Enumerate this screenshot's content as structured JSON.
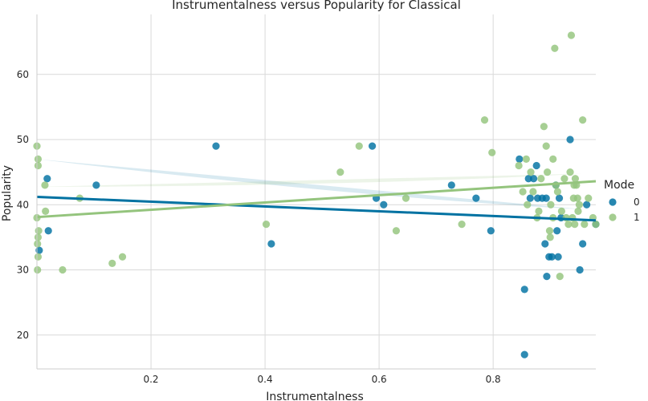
{
  "chart_data": {
    "type": "scatter",
    "title": "Instrumentalness versus Popularity for Classical",
    "xlabel": "Instrumentalness",
    "ylabel": "Popularity",
    "xlim": [
      0.0,
      0.98
    ],
    "ylim": [
      14.8,
      69.2
    ],
    "x_ticks": [
      0.2,
      0.4,
      0.6,
      0.8
    ],
    "x_tick_labels": [
      "0.2",
      "0.4",
      "0.6",
      "0.8"
    ],
    "y_ticks": [
      20,
      30,
      40,
      50,
      60
    ],
    "y_tick_labels": [
      "20",
      "30",
      "40",
      "50",
      "60"
    ],
    "grid": true,
    "legend": {
      "title": "Mode",
      "placement": "right"
    },
    "series": [
      {
        "name": "0",
        "color": "#0072a2",
        "points": [
          [
            0.004,
            33
          ],
          [
            0.018,
            44
          ],
          [
            0.02,
            36
          ],
          [
            0.104,
            43
          ],
          [
            0.314,
            49
          ],
          [
            0.411,
            34
          ],
          [
            0.588,
            49
          ],
          [
            0.595,
            41
          ],
          [
            0.608,
            40
          ],
          [
            0.727,
            43
          ],
          [
            0.77,
            41
          ],
          [
            0.796,
            36
          ],
          [
            0.846,
            47
          ],
          [
            0.855,
            27
          ],
          [
            0.855,
            17
          ],
          [
            0.862,
            44
          ],
          [
            0.865,
            41
          ],
          [
            0.871,
            44
          ],
          [
            0.876,
            46
          ],
          [
            0.878,
            41
          ],
          [
            0.886,
            41
          ],
          [
            0.891,
            34
          ],
          [
            0.893,
            41
          ],
          [
            0.894,
            29
          ],
          [
            0.898,
            32
          ],
          [
            0.903,
            32
          ],
          [
            0.91,
            43
          ],
          [
            0.912,
            36
          ],
          [
            0.914,
            32
          ],
          [
            0.916,
            41
          ],
          [
            0.919,
            38
          ],
          [
            0.935,
            50
          ],
          [
            0.952,
            30
          ],
          [
            0.957,
            34
          ],
          [
            0.964,
            40
          ],
          [
            0.98,
            37
          ]
        ],
        "fit": {
          "x0": 0.0,
          "y0": 41.2,
          "x1": 0.98,
          "y1": 37.6
        }
      },
      {
        "name": "1",
        "color": "#94c47d",
        "points": [
          [
            0.0,
            49
          ],
          [
            0.002,
            47
          ],
          [
            0.002,
            46
          ],
          [
            0.0,
            38
          ],
          [
            0.003,
            36
          ],
          [
            0.002,
            35
          ],
          [
            0.001,
            34
          ],
          [
            0.002,
            32
          ],
          [
            0.001,
            30
          ],
          [
            0.014,
            43
          ],
          [
            0.015,
            39
          ],
          [
            0.045,
            30
          ],
          [
            0.075,
            41
          ],
          [
            0.132,
            31
          ],
          [
            0.15,
            32
          ],
          [
            0.402,
            37
          ],
          [
            0.532,
            45
          ],
          [
            0.565,
            49
          ],
          [
            0.63,
            36
          ],
          [
            0.647,
            41
          ],
          [
            0.745,
            37
          ],
          [
            0.785,
            53
          ],
          [
            0.798,
            48
          ],
          [
            0.845,
            46
          ],
          [
            0.852,
            42
          ],
          [
            0.858,
            47
          ],
          [
            0.86,
            40
          ],
          [
            0.866,
            45
          ],
          [
            0.87,
            42
          ],
          [
            0.877,
            38
          ],
          [
            0.88,
            39
          ],
          [
            0.884,
            44
          ],
          [
            0.889,
            52
          ],
          [
            0.893,
            49
          ],
          [
            0.895,
            45
          ],
          [
            0.899,
            36
          ],
          [
            0.9,
            35
          ],
          [
            0.901,
            40
          ],
          [
            0.905,
            47
          ],
          [
            0.905,
            38
          ],
          [
            0.908,
            64
          ],
          [
            0.91,
            43
          ],
          [
            0.913,
            42
          ],
          [
            0.917,
            29
          ],
          [
            0.92,
            39
          ],
          [
            0.925,
            44
          ],
          [
            0.928,
            38
          ],
          [
            0.932,
            37
          ],
          [
            0.935,
            45
          ],
          [
            0.937,
            66
          ],
          [
            0.939,
            38
          ],
          [
            0.941,
            41
          ],
          [
            0.942,
            43
          ],
          [
            0.943,
            37
          ],
          [
            0.944,
            44
          ],
          [
            0.946,
            43
          ],
          [
            0.948,
            41
          ],
          [
            0.949,
            39
          ],
          [
            0.951,
            40
          ],
          [
            0.957,
            53
          ],
          [
            0.96,
            37
          ],
          [
            0.967,
            41
          ],
          [
            0.975,
            38
          ],
          [
            0.98,
            37
          ]
        ],
        "fit": {
          "x0": 0.0,
          "y0": 38.1,
          "x1": 0.98,
          "y1": 43.6
        }
      }
    ]
  }
}
